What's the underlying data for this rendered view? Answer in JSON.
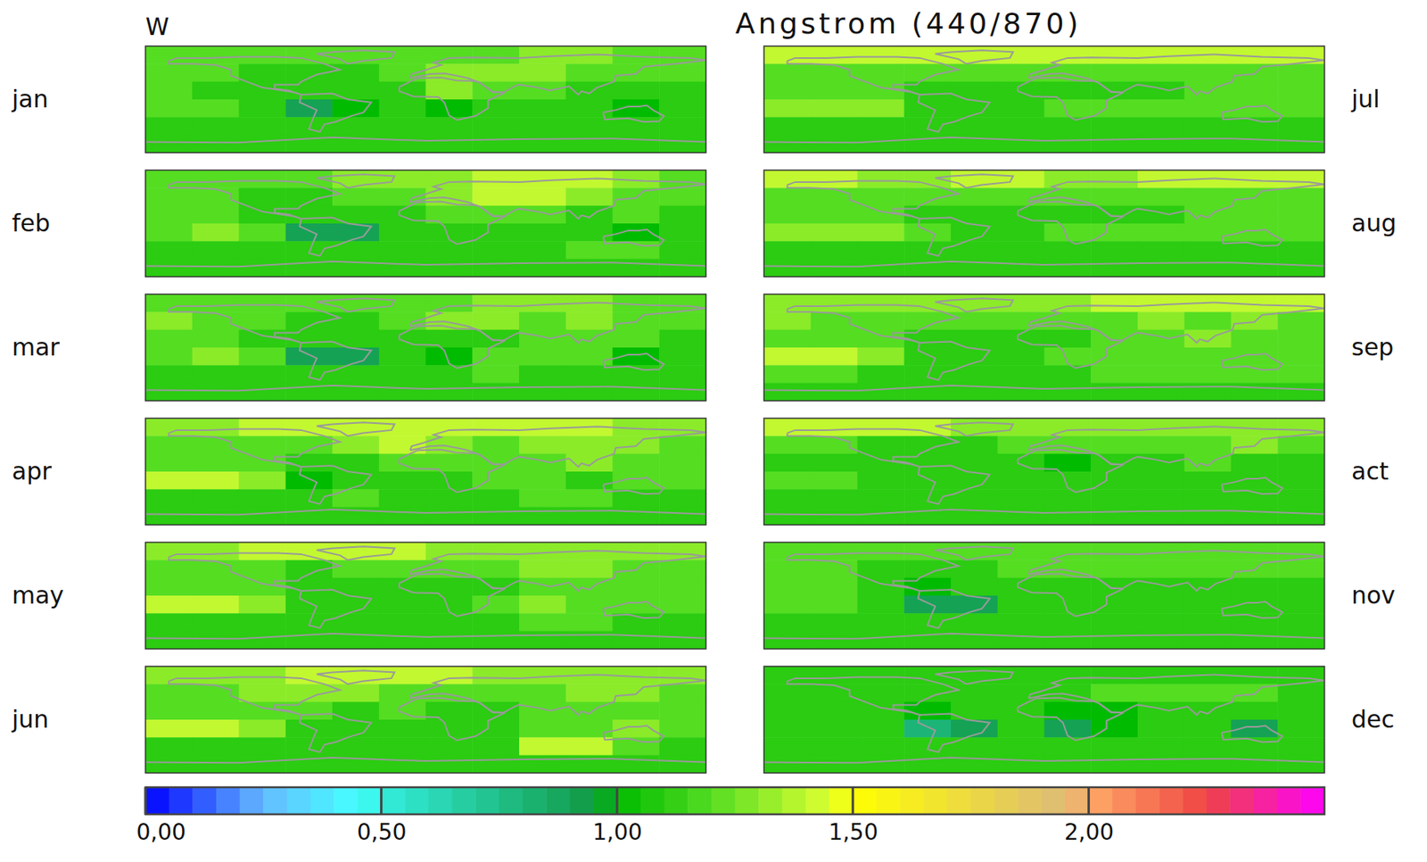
{
  "chart_data": {
    "type": "heatmap",
    "title": "Angstrom (440/870)",
    "subtitle": "W",
    "x": [
      -165,
      -135,
      -105,
      -75,
      -45,
      -15,
      15,
      45,
      75,
      105,
      135,
      165
    ],
    "y": [
      75,
      45,
      15,
      -15,
      -45,
      -75
    ],
    "xlim": [
      -180,
      180
    ],
    "ylim": [
      -90,
      90
    ],
    "tick_labels": false,
    "panels": [
      {
        "title": "jan",
        "values": [
          [
            1.2,
            1.2,
            1.2,
            1.2,
            1.2,
            1.2,
            1.2,
            1.2,
            1.3,
            1.3,
            1.2,
            1.2
          ],
          [
            1.2,
            1.2,
            1.1,
            1.1,
            1.1,
            1.2,
            1.3,
            1.3,
            1.3,
            1.2,
            1.2,
            1.2
          ],
          [
            1.2,
            1.1,
            1.1,
            1.1,
            1.1,
            1.1,
            1.3,
            1.2,
            1.2,
            1.1,
            1.1,
            1.1
          ],
          [
            1.2,
            1.2,
            1.1,
            0.9,
            1.0,
            1.1,
            1.0,
            1.1,
            1.1,
            1.1,
            1.0,
            1.1
          ],
          [
            1.1,
            1.1,
            1.1,
            1.1,
            1.1,
            1.1,
            1.1,
            1.1,
            1.1,
            1.1,
            1.1,
            1.1
          ],
          [
            1.1,
            1.1,
            1.1,
            1.1,
            1.1,
            1.1,
            1.1,
            1.1,
            1.1,
            1.1,
            1.1,
            1.1
          ]
        ]
      },
      {
        "title": "feb",
        "values": [
          [
            1.2,
            1.2,
            1.2,
            1.2,
            1.3,
            1.3,
            1.3,
            1.4,
            1.4,
            1.4,
            1.3,
            1.2
          ],
          [
            1.2,
            1.2,
            1.1,
            1.1,
            1.2,
            1.2,
            1.3,
            1.4,
            1.4,
            1.3,
            1.2,
            1.2
          ],
          [
            1.2,
            1.2,
            1.1,
            1.1,
            1.1,
            1.1,
            1.2,
            1.2,
            1.2,
            1.1,
            1.2,
            1.1
          ],
          [
            1.2,
            1.3,
            1.2,
            0.9,
            0.9,
            1.1,
            1.1,
            1.1,
            1.1,
            1.1,
            1.0,
            1.1
          ],
          [
            1.1,
            1.1,
            1.1,
            1.1,
            1.1,
            1.1,
            1.1,
            1.1,
            1.1,
            1.2,
            1.2,
            1.1
          ],
          [
            1.1,
            1.1,
            1.1,
            1.1,
            1.1,
            1.1,
            1.1,
            1.1,
            1.1,
            1.1,
            1.1,
            1.1
          ]
        ]
      },
      {
        "title": "mar",
        "values": [
          [
            1.2,
            1.2,
            1.2,
            1.2,
            1.2,
            1.2,
            1.2,
            1.3,
            1.3,
            1.3,
            1.2,
            1.2
          ],
          [
            1.3,
            1.2,
            1.2,
            1.1,
            1.1,
            1.2,
            1.3,
            1.3,
            1.2,
            1.3,
            1.2,
            1.2
          ],
          [
            1.2,
            1.2,
            1.1,
            1.1,
            1.1,
            1.1,
            1.1,
            1.1,
            1.2,
            1.2,
            1.2,
            1.1
          ],
          [
            1.2,
            1.3,
            1.2,
            0.9,
            0.9,
            1.1,
            1.0,
            1.2,
            1.2,
            1.2,
            1.0,
            1.1
          ],
          [
            1.1,
            1.1,
            1.1,
            1.1,
            1.1,
            1.1,
            1.1,
            1.2,
            1.1,
            1.1,
            1.1,
            1.1
          ],
          [
            1.1,
            1.1,
            1.1,
            1.1,
            1.1,
            1.1,
            1.1,
            1.1,
            1.1,
            1.1,
            1.1,
            1.1
          ]
        ]
      },
      {
        "title": "apr",
        "values": [
          [
            1.3,
            1.3,
            1.4,
            1.4,
            1.4,
            1.4,
            1.4,
            1.4,
            1.4,
            1.4,
            1.3,
            1.3
          ],
          [
            1.2,
            1.2,
            1.2,
            1.2,
            1.3,
            1.4,
            1.3,
            1.2,
            1.3,
            1.3,
            1.3,
            1.2
          ],
          [
            1.2,
            1.2,
            1.2,
            1.1,
            1.1,
            1.2,
            1.2,
            1.2,
            1.2,
            1.3,
            1.2,
            1.2
          ],
          [
            1.4,
            1.4,
            1.3,
            1.0,
            1.1,
            1.1,
            1.1,
            1.2,
            1.2,
            1.1,
            1.2,
            1.2
          ],
          [
            1.1,
            1.1,
            1.1,
            1.1,
            1.2,
            1.1,
            1.1,
            1.1,
            1.2,
            1.2,
            1.1,
            1.1
          ],
          [
            1.1,
            1.1,
            1.1,
            1.1,
            1.1,
            1.1,
            1.1,
            1.1,
            1.1,
            1.1,
            1.1,
            1.1
          ]
        ]
      },
      {
        "title": "may",
        "values": [
          [
            1.3,
            1.3,
            1.4,
            1.4,
            1.4,
            1.4,
            1.3,
            1.3,
            1.3,
            1.3,
            1.3,
            1.3
          ],
          [
            1.2,
            1.2,
            1.2,
            1.1,
            1.2,
            1.2,
            1.2,
            1.2,
            1.3,
            1.3,
            1.2,
            1.2
          ],
          [
            1.2,
            1.2,
            1.2,
            1.1,
            1.1,
            1.1,
            1.1,
            1.1,
            1.2,
            1.2,
            1.2,
            1.2
          ],
          [
            1.4,
            1.4,
            1.3,
            1.1,
            1.1,
            1.1,
            1.1,
            1.2,
            1.3,
            1.2,
            1.2,
            1.2
          ],
          [
            1.1,
            1.1,
            1.1,
            1.1,
            1.1,
            1.1,
            1.1,
            1.1,
            1.2,
            1.2,
            1.1,
            1.1
          ],
          [
            1.1,
            1.1,
            1.1,
            1.1,
            1.1,
            1.1,
            1.1,
            1.1,
            1.1,
            1.1,
            1.1,
            1.1
          ]
        ]
      },
      {
        "title": "jun",
        "values": [
          [
            1.3,
            1.3,
            1.3,
            1.4,
            1.4,
            1.4,
            1.4,
            1.3,
            1.3,
            1.3,
            1.3,
            1.3
          ],
          [
            1.2,
            1.2,
            1.3,
            1.3,
            1.3,
            1.2,
            1.2,
            1.2,
            1.2,
            1.3,
            1.3,
            1.2
          ],
          [
            1.2,
            1.2,
            1.2,
            1.2,
            1.1,
            1.2,
            1.1,
            1.1,
            1.2,
            1.2,
            1.2,
            1.2
          ],
          [
            1.4,
            1.4,
            1.3,
            1.1,
            1.1,
            1.1,
            1.1,
            1.1,
            1.2,
            1.2,
            1.3,
            1.2
          ],
          [
            1.1,
            1.1,
            1.1,
            1.1,
            1.1,
            1.1,
            1.1,
            1.1,
            1.4,
            1.4,
            1.2,
            1.1
          ],
          [
            1.1,
            1.1,
            1.1,
            1.1,
            1.1,
            1.1,
            1.1,
            1.1,
            1.1,
            1.1,
            1.1,
            1.1
          ]
        ]
      },
      {
        "title": "jul",
        "values": [
          [
            1.4,
            1.4,
            1.4,
            1.4,
            1.4,
            1.4,
            1.4,
            1.4,
            1.4,
            1.4,
            1.4,
            1.4
          ],
          [
            1.2,
            1.2,
            1.2,
            1.2,
            1.2,
            1.2,
            1.2,
            1.2,
            1.2,
            1.2,
            1.2,
            1.2
          ],
          [
            1.2,
            1.2,
            1.2,
            1.1,
            1.1,
            1.1,
            1.1,
            1.1,
            1.1,
            1.2,
            1.2,
            1.2
          ],
          [
            1.3,
            1.3,
            1.3,
            1.1,
            1.1,
            1.1,
            1.2,
            1.2,
            1.2,
            1.2,
            1.2,
            1.2
          ],
          [
            1.1,
            1.1,
            1.1,
            1.1,
            1.1,
            1.1,
            1.1,
            1.1,
            1.1,
            1.1,
            1.1,
            1.1
          ],
          [
            1.1,
            1.1,
            1.1,
            1.1,
            1.1,
            1.1,
            1.1,
            1.1,
            1.1,
            1.1,
            1.1,
            1.1
          ]
        ]
      },
      {
        "title": "aug",
        "values": [
          [
            1.4,
            1.4,
            1.3,
            1.3,
            1.4,
            1.4,
            1.3,
            1.3,
            1.4,
            1.4,
            1.4,
            1.4
          ],
          [
            1.2,
            1.2,
            1.2,
            1.2,
            1.2,
            1.2,
            1.2,
            1.2,
            1.2,
            1.2,
            1.2,
            1.2
          ],
          [
            1.2,
            1.2,
            1.2,
            1.1,
            1.1,
            1.1,
            1.1,
            1.1,
            1.1,
            1.2,
            1.2,
            1.2
          ],
          [
            1.3,
            1.3,
            1.3,
            1.2,
            1.1,
            1.1,
            1.2,
            1.2,
            1.2,
            1.2,
            1.2,
            1.2
          ],
          [
            1.1,
            1.1,
            1.1,
            1.1,
            1.1,
            1.1,
            1.1,
            1.1,
            1.1,
            1.1,
            1.1,
            1.1
          ],
          [
            1.1,
            1.1,
            1.1,
            1.1,
            1.1,
            1.1,
            1.1,
            1.1,
            1.1,
            1.1,
            1.1,
            1.1
          ]
        ]
      },
      {
        "title": "sep",
        "values": [
          [
            1.3,
            1.3,
            1.3,
            1.3,
            1.3,
            1.3,
            1.3,
            1.4,
            1.4,
            1.4,
            1.4,
            1.4
          ],
          [
            1.3,
            1.2,
            1.2,
            1.2,
            1.2,
            1.2,
            1.2,
            1.2,
            1.3,
            1.2,
            1.3,
            1.2
          ],
          [
            1.2,
            1.2,
            1.2,
            1.1,
            1.1,
            1.1,
            1.1,
            1.2,
            1.2,
            1.3,
            1.2,
            1.2
          ],
          [
            1.4,
            1.4,
            1.3,
            1.1,
            1.1,
            1.1,
            1.2,
            1.2,
            1.2,
            1.2,
            1.2,
            1.2
          ],
          [
            1.2,
            1.2,
            1.1,
            1.1,
            1.1,
            1.1,
            1.1,
            1.2,
            1.2,
            1.2,
            1.2,
            1.2
          ],
          [
            1.1,
            1.1,
            1.1,
            1.1,
            1.1,
            1.1,
            1.1,
            1.1,
            1.1,
            1.1,
            1.1,
            1.1
          ]
        ]
      },
      {
        "title": "act",
        "values": [
          [
            1.4,
            1.4,
            1.4,
            1.4,
            1.3,
            1.3,
            1.3,
            1.3,
            1.3,
            1.3,
            1.3,
            1.3
          ],
          [
            1.2,
            1.2,
            1.1,
            1.1,
            1.1,
            1.2,
            1.2,
            1.2,
            1.2,
            1.2,
            1.3,
            1.2
          ],
          [
            1.1,
            1.1,
            1.1,
            1.1,
            1.1,
            1.1,
            1.0,
            1.1,
            1.1,
            1.2,
            1.1,
            1.1
          ],
          [
            1.2,
            1.2,
            1.1,
            1.1,
            1.1,
            1.1,
            1.1,
            1.1,
            1.1,
            1.1,
            1.1,
            1.1
          ],
          [
            1.1,
            1.1,
            1.1,
            1.1,
            1.1,
            1.1,
            1.1,
            1.1,
            1.1,
            1.1,
            1.1,
            1.1
          ],
          [
            1.1,
            1.1,
            1.1,
            1.1,
            1.1,
            1.1,
            1.1,
            1.1,
            1.1,
            1.1,
            1.1,
            1.1
          ]
        ]
      },
      {
        "title": "nov",
        "values": [
          [
            1.2,
            1.2,
            1.2,
            1.2,
            1.2,
            1.2,
            1.2,
            1.2,
            1.2,
            1.2,
            1.2,
            1.2
          ],
          [
            1.2,
            1.2,
            1.1,
            1.1,
            1.1,
            1.2,
            1.2,
            1.2,
            1.2,
            1.2,
            1.2,
            1.2
          ],
          [
            1.2,
            1.2,
            1.1,
            1.0,
            1.1,
            1.1,
            1.1,
            1.1,
            1.1,
            1.1,
            1.1,
            1.1
          ],
          [
            1.2,
            1.2,
            1.1,
            0.9,
            0.9,
            1.1,
            1.1,
            1.1,
            1.1,
            1.1,
            1.1,
            1.1
          ],
          [
            1.1,
            1.1,
            1.1,
            1.1,
            1.1,
            1.1,
            1.1,
            1.1,
            1.1,
            1.1,
            1.1,
            1.1
          ],
          [
            1.1,
            1.1,
            1.1,
            1.1,
            1.1,
            1.1,
            1.1,
            1.1,
            1.1,
            1.1,
            1.1,
            1.1
          ]
        ]
      },
      {
        "title": "dec",
        "values": [
          [
            1.1,
            1.1,
            1.1,
            1.1,
            1.1,
            1.1,
            1.1,
            1.1,
            1.1,
            1.1,
            1.1,
            1.1
          ],
          [
            1.1,
            1.1,
            1.1,
            1.1,
            1.1,
            1.1,
            1.1,
            1.2,
            1.2,
            1.2,
            1.2,
            1.1
          ],
          [
            1.1,
            1.1,
            1.1,
            1.0,
            1.1,
            1.1,
            1.0,
            1.0,
            1.1,
            1.1,
            1.1,
            1.1
          ],
          [
            1.1,
            1.1,
            1.1,
            0.8,
            0.9,
            1.1,
            0.9,
            1.0,
            1.1,
            1.1,
            0.9,
            1.1
          ],
          [
            1.1,
            1.1,
            1.1,
            1.1,
            1.1,
            1.1,
            1.1,
            1.1,
            1.1,
            1.1,
            1.1,
            1.1
          ],
          [
            1.1,
            1.1,
            1.1,
            1.1,
            1.1,
            1.1,
            1.1,
            1.1,
            1.1,
            1.1,
            1.1,
            1.1
          ]
        ]
      }
    ],
    "colorbar": {
      "range": [
        0,
        2.5
      ],
      "ticks": [
        {
          "value": 0,
          "label": "0,00"
        },
        {
          "value": 0.5,
          "label": "0,50"
        },
        {
          "value": 1,
          "label": "1,00"
        },
        {
          "value": 1.5,
          "label": "1,50"
        },
        {
          "value": 2,
          "label": "2,00"
        }
      ]
    }
  }
}
